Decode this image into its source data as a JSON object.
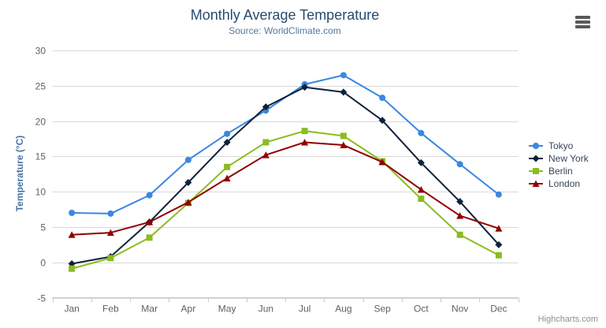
{
  "page": {
    "credits": "Highcharts.com"
  },
  "chart_data": {
    "type": "line",
    "title": "Monthly Average Temperature",
    "subtitle": "Source: WorldClimate.com",
    "xlabel": "",
    "ylabel": "Temperature (°C)",
    "categories": [
      "Jan",
      "Feb",
      "Mar",
      "Apr",
      "May",
      "Jun",
      "Jul",
      "Aug",
      "Sep",
      "Oct",
      "Nov",
      "Dec"
    ],
    "yticks": [
      30,
      25,
      20,
      15,
      10,
      5,
      0,
      -5
    ],
    "ylim": [
      -5,
      30
    ],
    "grid": true,
    "legend_position": "right-middle",
    "series": [
      {
        "name": "Tokyo",
        "marker": "circle",
        "color": "#3b87e1",
        "values": [
          7.0,
          6.9,
          9.5,
          14.5,
          18.2,
          21.5,
          25.2,
          26.5,
          23.3,
          18.3,
          13.9,
          9.6
        ]
      },
      {
        "name": "New York",
        "marker": "diamond",
        "color": "#0d233a",
        "values": [
          -0.2,
          0.8,
          5.7,
          11.3,
          17.0,
          22.0,
          24.8,
          24.1,
          20.1,
          14.1,
          8.6,
          2.5
        ]
      },
      {
        "name": "Berlin",
        "marker": "square",
        "color": "#8bbc21",
        "values": [
          -0.9,
          0.6,
          3.5,
          8.4,
          13.5,
          17.0,
          18.6,
          17.9,
          14.3,
          9.0,
          3.9,
          1.0
        ]
      },
      {
        "name": "London",
        "marker": "triangle",
        "color": "#910000",
        "values": [
          3.9,
          4.2,
          5.7,
          8.5,
          11.9,
          15.2,
          17.0,
          16.6,
          14.2,
          10.3,
          6.6,
          4.8
        ]
      }
    ],
    "colors": {
      "grid_line": "#d8d8d8",
      "axis_line": "#c0d0e0",
      "tick_label": "#606060",
      "title": "#274b6d",
      "subtitle": "#54789e",
      "axis_title": "#4572a7",
      "legend_text": "#35475c"
    }
  }
}
